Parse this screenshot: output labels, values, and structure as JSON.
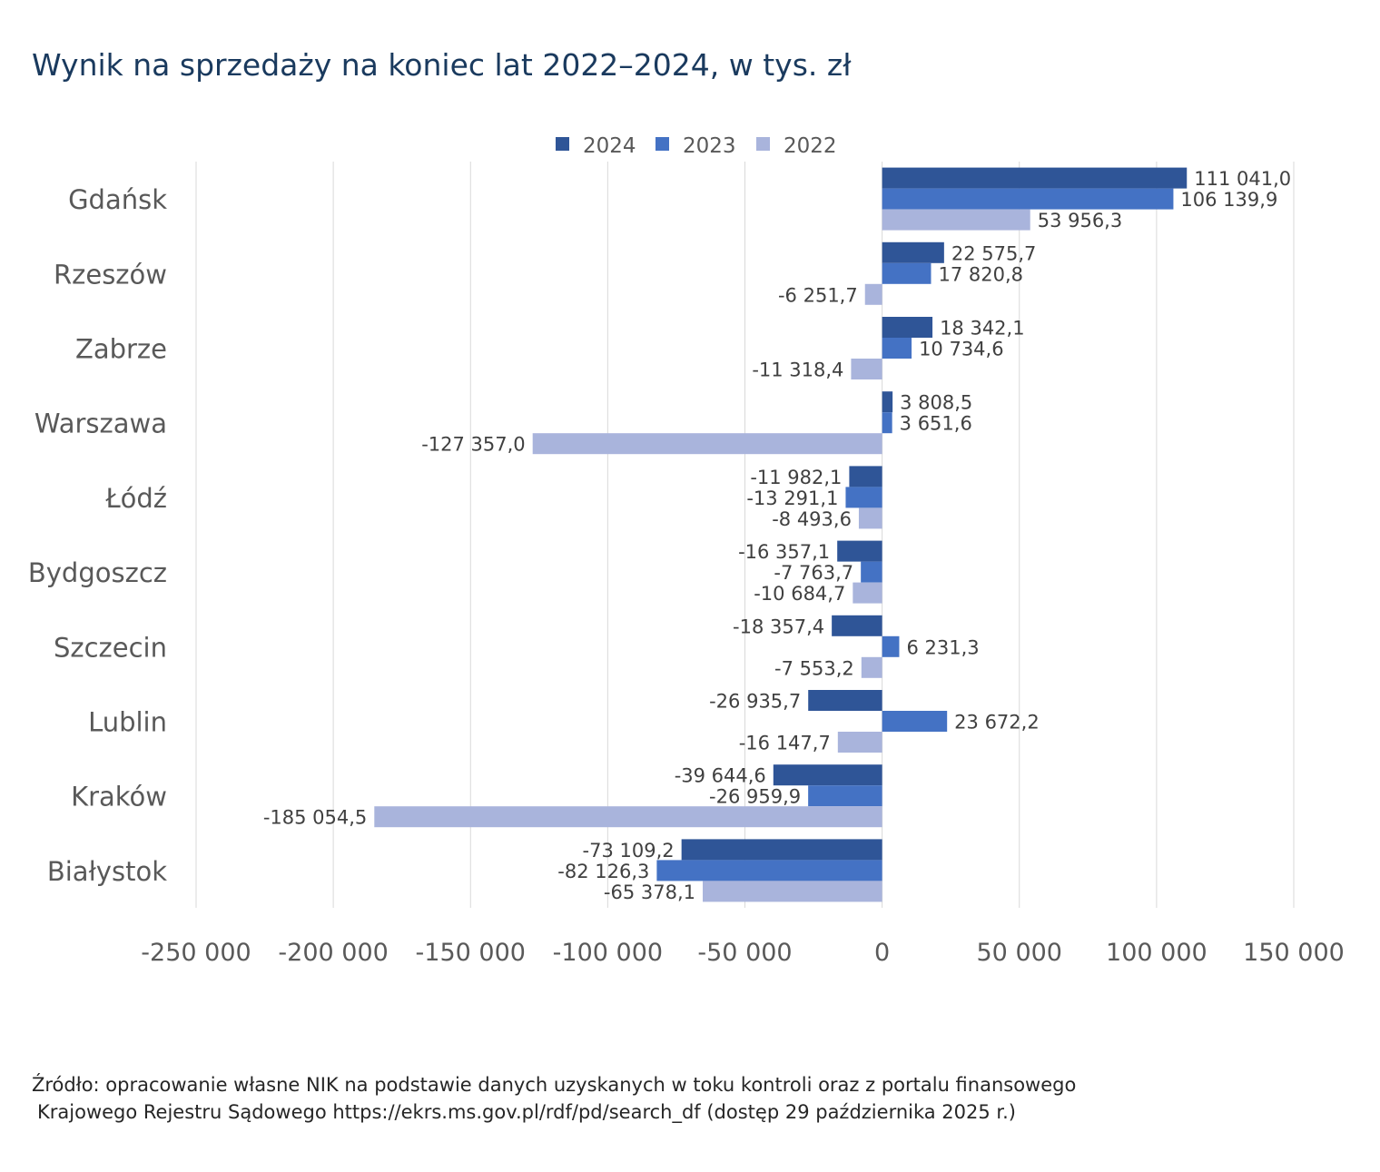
{
  "title": "Wynik na sprzedaży na koniec lat 2022–2024, w tys. zł",
  "source": {
    "line1": "Źródło: opracowanie własne NIK na podstawie danych uzyskanych w toku kontroli oraz z portalu finansowego",
    "line2": "Krajowego Rejestru Sądowego https://ekrs.ms.gov.pl/rdf/pd/search_df (dostęp 29 października 2025 r.)"
  },
  "chart_data": {
    "type": "bar",
    "orientation": "horizontal",
    "title": "Wynik na sprzedaży na koniec lat 2022–2024, w tys. zł",
    "categories": [
      "Gdańsk",
      "Rzeszów",
      "Zabrze",
      "Warszawa",
      "Łódź",
      "Bydgoszcz",
      "Szczecin",
      "Lublin",
      "Kraków",
      "Białystok"
    ],
    "series": [
      {
        "name": "2024",
        "color": "#2f5597",
        "values": [
          111041.0,
          22575.7,
          18342.1,
          3808.5,
          -11982.1,
          -16357.1,
          -18357.4,
          -26935.7,
          -39644.6,
          -73109.2
        ],
        "labels": [
          "111 041,0",
          "22 575,7",
          "18 342,1",
          "3 808,5",
          "-11 982,1",
          "-16 357,1",
          "-18 357,4",
          "-26 935,7",
          "-39 644,6",
          "-73 109,2"
        ]
      },
      {
        "name": "2023",
        "color": "#4472c4",
        "values": [
          106139.9,
          17820.8,
          10734.6,
          3651.6,
          -13291.1,
          -7763.7,
          6231.3,
          23672.2,
          -26959.9,
          -82126.3
        ],
        "labels": [
          "106 139,9",
          "17 820,8",
          "10 734,6",
          "3 651,6",
          "-13 291,1",
          "-7 763,7",
          "6 231,3",
          "23 672,2",
          "-26 959,9",
          "-82 126,3"
        ]
      },
      {
        "name": "2022",
        "color": "#a9b4dc",
        "values": [
          53956.3,
          -6251.7,
          -11318.4,
          -127357.0,
          -8493.6,
          -10684.7,
          -7553.2,
          -16147.7,
          -185054.5,
          -65378.1
        ],
        "labels": [
          "53 956,3",
          "-6 251,7",
          "-11 318,4",
          "-127 357,0",
          "-8 493,6",
          "-10 684,7",
          "-7 553,2",
          "-16 147,7",
          "-185 054,5",
          "-65 378,1"
        ]
      }
    ],
    "xlim": [
      -250000,
      150000
    ],
    "xticks": [
      -250000,
      -200000,
      -150000,
      -100000,
      -50000,
      0,
      50000,
      100000,
      150000
    ],
    "xtick_labels": [
      "-250 000",
      "-200 000",
      "-150 000",
      "-100 000",
      "-50 000",
      "0",
      "50 000",
      "100 000",
      "150 000"
    ],
    "legend_order": [
      "2024",
      "2023",
      "2022"
    ],
    "legend_position": "top",
    "grid": "vertical"
  }
}
